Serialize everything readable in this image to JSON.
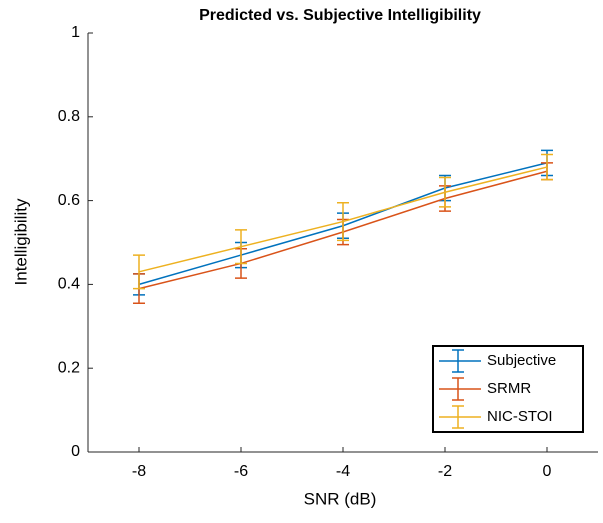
{
  "chart_data": {
    "type": "errorbar-line",
    "title": "Predicted vs. Subjective Intelligibility",
    "x_label": "SNR (dB)",
    "y_label": "Intelligibility",
    "x": [
      -8,
      -6,
      -4,
      -2,
      0
    ],
    "series": [
      {
        "name": "Subjective",
        "color": "#0072BD",
        "values": [
          0.4,
          0.47,
          0.54,
          0.63,
          0.69
        ],
        "errors": [
          0.025,
          0.03,
          0.03,
          0.03,
          0.03
        ]
      },
      {
        "name": "SRMR",
        "color": "#D95319",
        "values": [
          0.39,
          0.45,
          0.525,
          0.605,
          0.67
        ],
        "errors": [
          0.035,
          0.035,
          0.03,
          0.03,
          0.02
        ]
      },
      {
        "name": "NIC-STOI",
        "color": "#EDB120",
        "values": [
          0.43,
          0.49,
          0.55,
          0.62,
          0.68
        ],
        "errors": [
          0.04,
          0.04,
          0.045,
          0.035,
          0.03
        ]
      }
    ],
    "xlim": [
      -9,
      1
    ],
    "xticks": [
      -8,
      -6,
      -4,
      -2,
      0
    ],
    "ylim": [
      0,
      1
    ],
    "yticks": [
      0,
      0.2,
      0.4,
      0.6,
      0.8,
      1
    ],
    "legend": "lower right"
  }
}
